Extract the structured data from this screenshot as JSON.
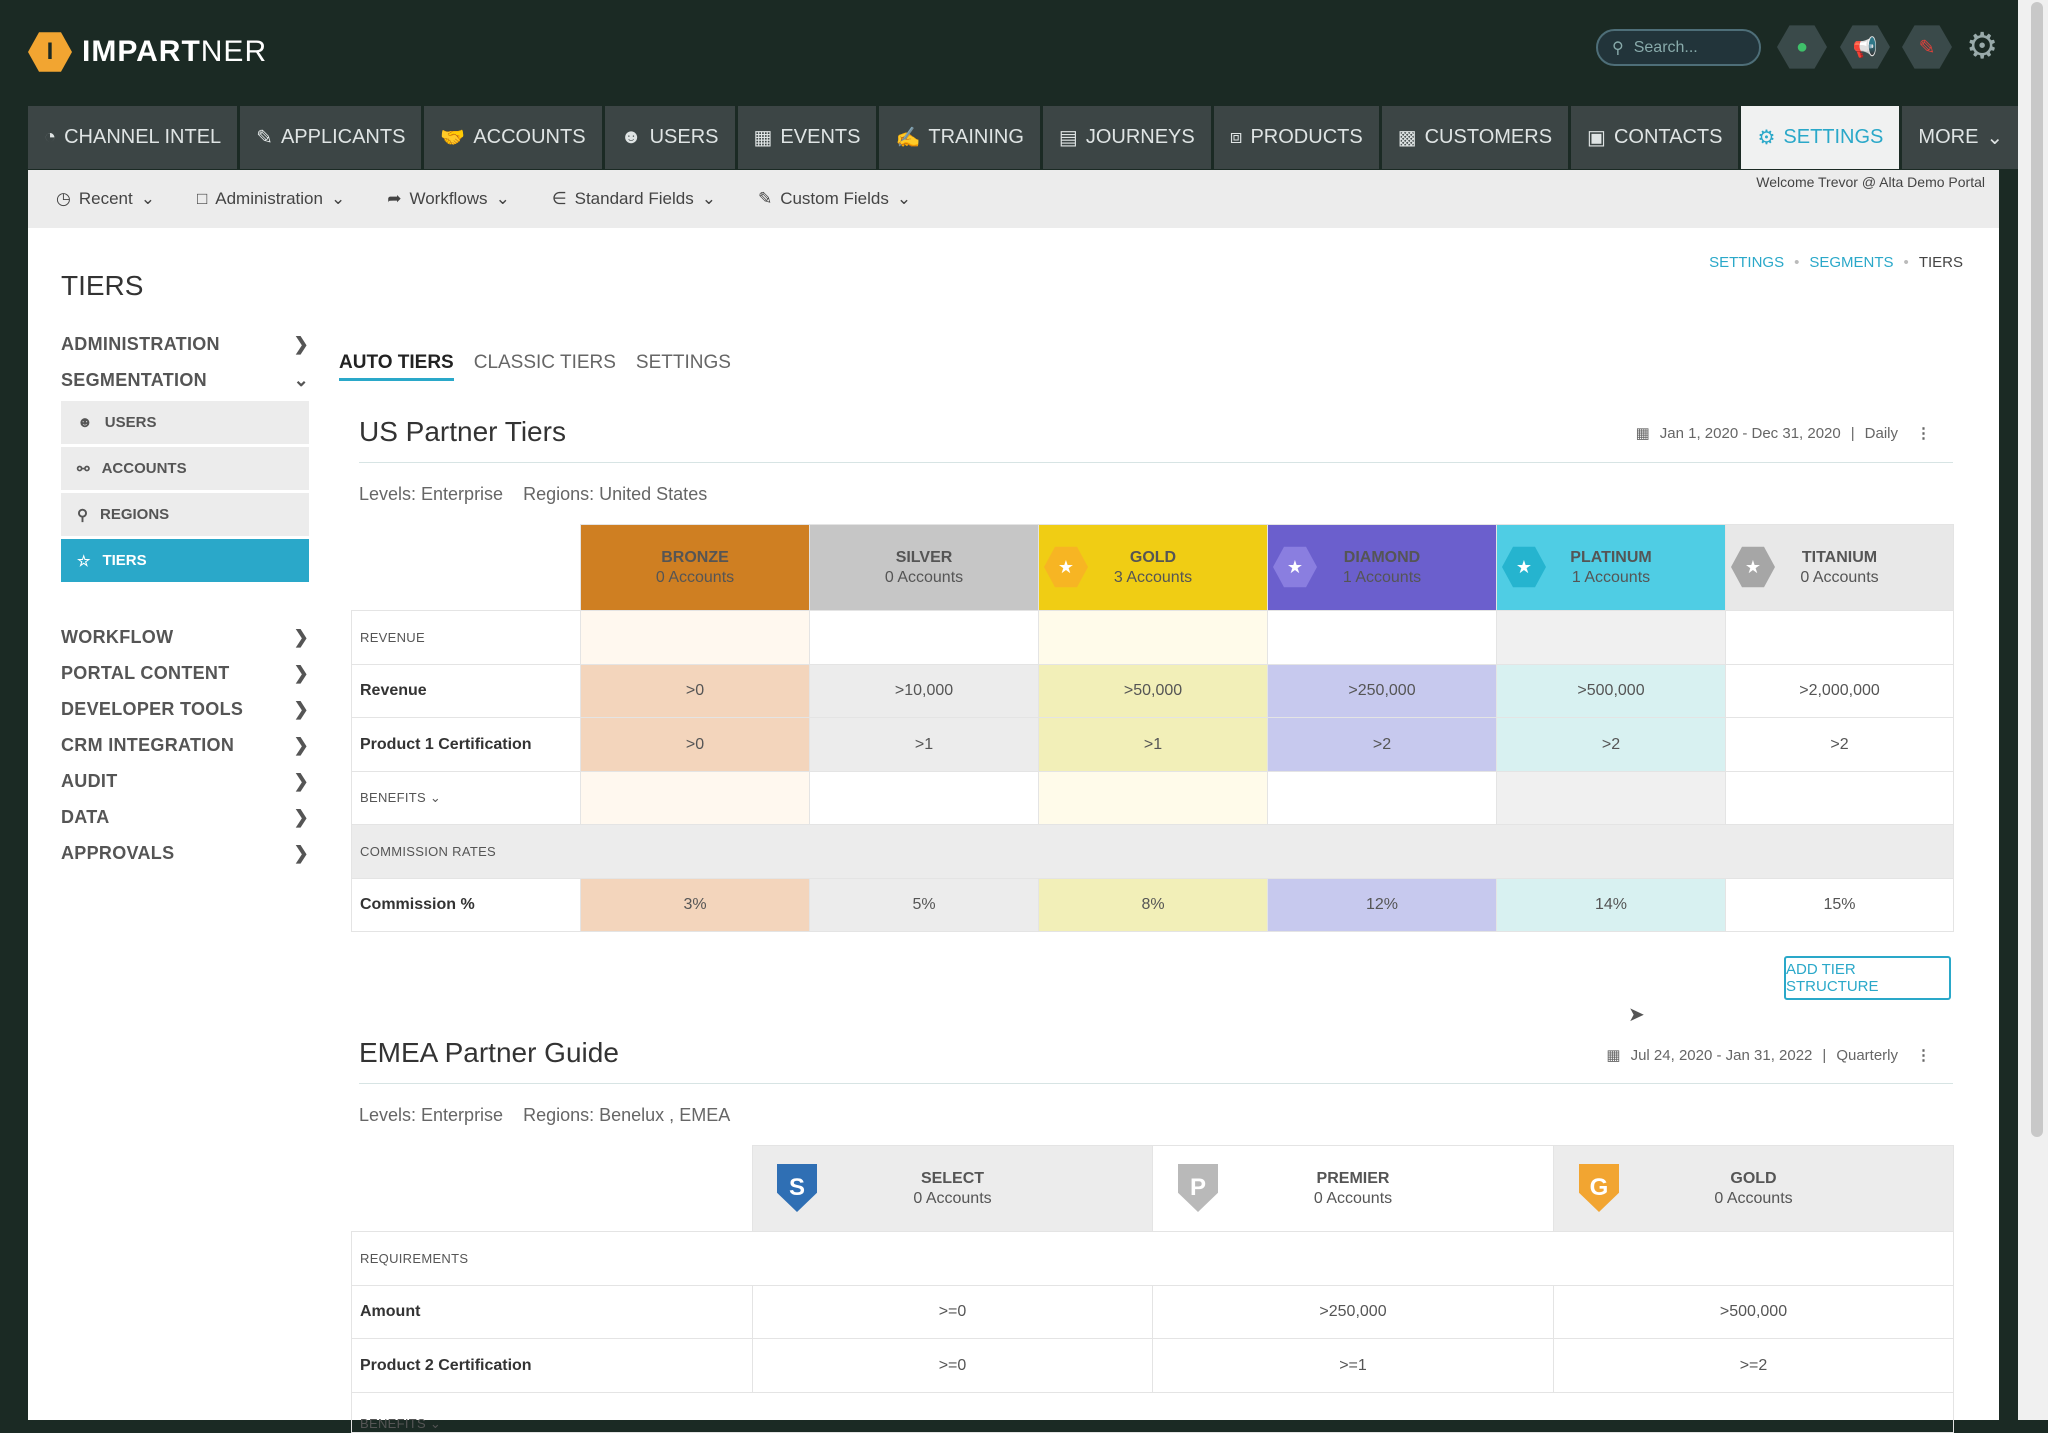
{
  "app": {
    "logo_letter": "I",
    "logo_bold": "IMPART",
    "logo_light": "NER",
    "search_placeholder": "Search...",
    "welcome": "Welcome Trevor @ Alta Demo Portal"
  },
  "colors": {
    "accent": "#2aa8c9",
    "bronze": "#cf7f22",
    "silver": "#c6c6c6",
    "gold": "#f0cd14",
    "diamond": "#6b5fcd",
    "platinum": "#4fcde4",
    "titanium": "#e8e8e8"
  },
  "nav": [
    {
      "label": "CHANNEL INTEL",
      "icon": "gauge-icon"
    },
    {
      "label": "APPLICANTS",
      "icon": "pencil-icon"
    },
    {
      "label": "ACCOUNTS",
      "icon": "handshake-icon"
    },
    {
      "label": "USERS",
      "icon": "users-icon"
    },
    {
      "label": "EVENTS",
      "icon": "calendar-icon"
    },
    {
      "label": "TRAINING",
      "icon": "training-icon"
    },
    {
      "label": "JOURNEYS",
      "icon": "map-icon"
    },
    {
      "label": "PRODUCTS",
      "icon": "box-icon"
    },
    {
      "label": "CUSTOMERS",
      "icon": "building-icon"
    },
    {
      "label": "CONTACTS",
      "icon": "contact-icon"
    },
    {
      "label": "SETTINGS",
      "icon": "gear-icon"
    },
    {
      "label": "MORE",
      "icon": "chevron-down-icon"
    }
  ],
  "subnav": [
    {
      "label": "Recent"
    },
    {
      "label": "Administration"
    },
    {
      "label": "Workflows"
    },
    {
      "label": "Standard Fields"
    },
    {
      "label": "Custom Fields"
    }
  ],
  "breadcrumb": {
    "a": "SETTINGS",
    "b": "SEGMENTS",
    "c": "TIERS"
  },
  "page_title": "TIERS",
  "sidebar": {
    "administration": "ADMINISTRATION",
    "segmentation": "SEGMENTATION",
    "sub": [
      "USERS",
      "ACCOUNTS",
      "REGIONS",
      "TIERS"
    ],
    "rest": [
      "WORKFLOW",
      "PORTAL CONTENT",
      "DEVELOPER TOOLS",
      "CRM INTEGRATION",
      "AUDIT",
      "DATA",
      "APPROVALS"
    ]
  },
  "tabs": [
    "AUTO TIERS",
    "CLASSIC TIERS",
    "SETTINGS"
  ],
  "us": {
    "title": "US Partner Tiers",
    "dates": "Jan 1, 2020 - Dec 31, 2020",
    "freq": "Daily",
    "levels": "Levels: Enterprise",
    "regions": "Regions: United States",
    "tiers": [
      {
        "name": "BRONZE",
        "count": "0 Accounts"
      },
      {
        "name": "SILVER",
        "count": "0 Accounts"
      },
      {
        "name": "GOLD",
        "count": "3 Accounts"
      },
      {
        "name": "DIAMOND",
        "count": "1 Accounts"
      },
      {
        "name": "PLATINUM",
        "count": "1 Accounts"
      },
      {
        "name": "TITANIUM",
        "count": "0 Accounts"
      }
    ],
    "revenue_section": "REVENUE",
    "revenue_label": "Revenue",
    "revenue": [
      ">0",
      ">10,000",
      ">50,000",
      ">250,000",
      ">500,000",
      ">2,000,000"
    ],
    "cert_label": "Product 1 Certification",
    "cert": [
      ">0",
      ">1",
      ">1",
      ">2",
      ">2",
      ">2"
    ],
    "benefits": "BENEFITS",
    "commission_section": "COMMISSION RATES",
    "commission_label": "Commission %",
    "commission": [
      "3%",
      "5%",
      "8%",
      "12%",
      "14%",
      "15%"
    ]
  },
  "add_button": "ADD TIER STRUCTURE",
  "emea": {
    "title": "EMEA Partner Guide",
    "dates": "Jul 24, 2020 - Jan 31, 2022",
    "freq": "Quarterly",
    "levels": "Levels: Enterprise",
    "regions": "Regions: Benelux , EMEA",
    "tiers": [
      {
        "name": "SELECT",
        "count": "0 Accounts",
        "letter": "S"
      },
      {
        "name": "PREMIER",
        "count": "0 Accounts",
        "letter": "P"
      },
      {
        "name": "GOLD",
        "count": "0 Accounts",
        "letter": "G"
      }
    ],
    "req_section": "REQUIREMENTS",
    "amount_label": "Amount",
    "amount": [
      ">=0",
      ">250,000",
      ">500,000"
    ],
    "cert_label": "Product 2 Certification",
    "cert": [
      ">=0",
      ">=1",
      ">=2"
    ],
    "benefits": "BENEFITS"
  }
}
